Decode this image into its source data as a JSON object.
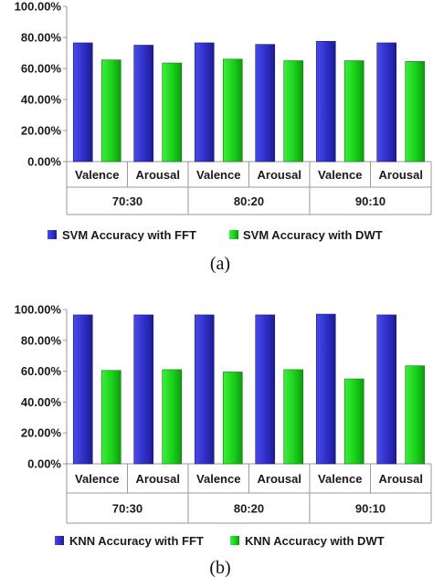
{
  "colors": {
    "series1": "#2e2ec8",
    "series1_dark": "#1a1a7a",
    "series2": "#19d119",
    "series2_dark": "#0d7a0d",
    "axis": "#9a9a9a"
  },
  "chart_data": [
    {
      "type": "bar",
      "caption": "(a)",
      "ylim": [
        0,
        100
      ],
      "yticks": [
        "0.00%",
        "20.00%",
        "40.00%",
        "60.00%",
        "80.00%",
        "100.00%"
      ],
      "categories": [
        "Valence",
        "Arousal",
        "Valence",
        "Arousal",
        "Valence",
        "Arousal"
      ],
      "groups": [
        "70:30",
        "80:20",
        "90:10"
      ],
      "legend_position": "bottom",
      "series": [
        {
          "name": "SVM Accuracy with FFT",
          "values": [
            76.5,
            75.0,
            76.5,
            75.5,
            77.5,
            76.5
          ]
        },
        {
          "name": "SVM Accuracy with DWT",
          "values": [
            65.5,
            63.5,
            66.0,
            65.0,
            65.0,
            64.5
          ]
        }
      ]
    },
    {
      "type": "bar",
      "caption": "(b)",
      "ylim": [
        0,
        100
      ],
      "yticks": [
        "0.00%",
        "20.00%",
        "40.00%",
        "60.00%",
        "80.00%",
        "100.00%"
      ],
      "categories": [
        "Valence",
        "Arousal",
        "Valence",
        "Arousal",
        "Valence",
        "Arousal"
      ],
      "groups": [
        "70:30",
        "80:20",
        "90:10"
      ],
      "legend_position": "bottom",
      "series": [
        {
          "name": "KNN Accuracy with FFT",
          "values": [
            96.5,
            96.5,
            96.5,
            96.5,
            97.0,
            96.5
          ]
        },
        {
          "name": "KNN Accuracy with DWT",
          "values": [
            60.5,
            61.0,
            59.5,
            61.0,
            55.0,
            63.5
          ]
        }
      ]
    }
  ]
}
